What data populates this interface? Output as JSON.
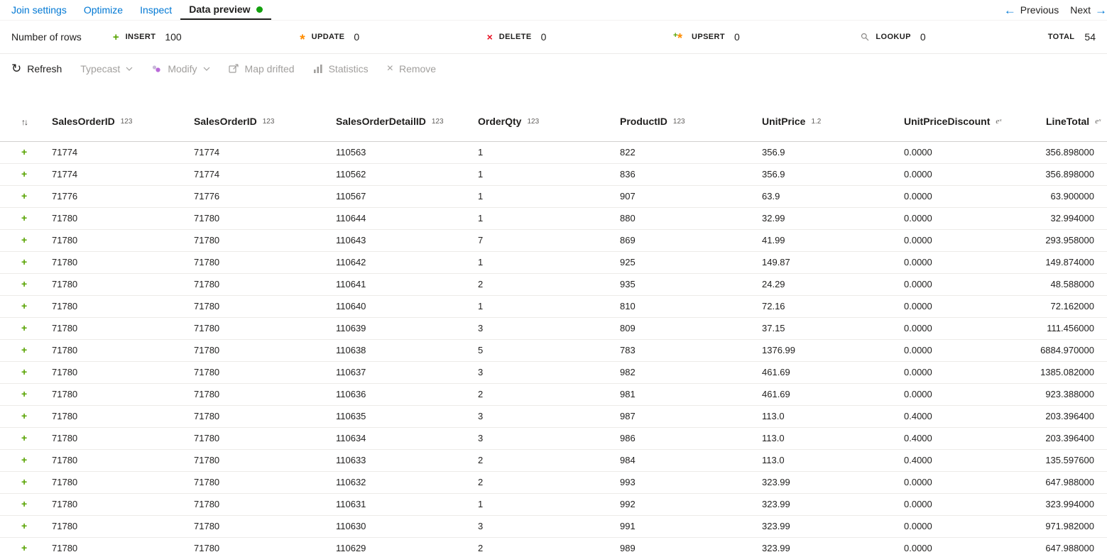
{
  "colors": {
    "accent": "#0078d4",
    "insert_green": "#57a300",
    "update_orange": "#ff8c00",
    "delete_red": "#e81123",
    "active_dot_green": "#13a10e"
  },
  "tabs": [
    {
      "label": "Join settings",
      "active": false
    },
    {
      "label": "Optimize",
      "active": false
    },
    {
      "label": "Inspect",
      "active": false
    },
    {
      "label": "Data preview",
      "active": true
    }
  ],
  "pager": {
    "previous_label": "Previous",
    "next_label": "Next",
    "prev_arrow": "←",
    "next_arrow": "→"
  },
  "stats": {
    "rows_label": "Number of rows",
    "insert": {
      "label": "INSERT",
      "value": "100"
    },
    "update": {
      "label": "UPDATE",
      "value": "0"
    },
    "delete": {
      "label": "DELETE",
      "value": "0"
    },
    "upsert": {
      "label": "UPSERT",
      "value": "0"
    },
    "lookup": {
      "label": "LOOKUP",
      "value": "0"
    },
    "total": {
      "label": "TOTAL",
      "value": "54"
    }
  },
  "toolbar": {
    "refresh_label": "Refresh",
    "typecast_label": "Typecast",
    "modify_label": "Modify",
    "map_drifted_label": "Map drifted",
    "statistics_label": "Statistics",
    "remove_label": "Remove"
  },
  "table": {
    "sort_icon": "↑↓",
    "columns": [
      {
        "name": "SalesOrderID",
        "type": "123"
      },
      {
        "name": "SalesOrderID",
        "type": "123"
      },
      {
        "name": "SalesOrderDetailID",
        "type": "123"
      },
      {
        "name": "OrderQty",
        "type": "123"
      },
      {
        "name": "ProductID",
        "type": "123"
      },
      {
        "name": "UnitPrice",
        "type": "1.2"
      },
      {
        "name": "UnitPriceDiscount",
        "type": "eˣ"
      },
      {
        "name": "LineTotal",
        "type": "eˣ"
      }
    ],
    "rows": [
      [
        "71774",
        "71774",
        "110563",
        "1",
        "822",
        "356.9",
        "0.0000",
        "356.898000"
      ],
      [
        "71774",
        "71774",
        "110562",
        "1",
        "836",
        "356.9",
        "0.0000",
        "356.898000"
      ],
      [
        "71776",
        "71776",
        "110567",
        "1",
        "907",
        "63.9",
        "0.0000",
        "63.900000"
      ],
      [
        "71780",
        "71780",
        "110644",
        "1",
        "880",
        "32.99",
        "0.0000",
        "32.994000"
      ],
      [
        "71780",
        "71780",
        "110643",
        "7",
        "869",
        "41.99",
        "0.0000",
        "293.958000"
      ],
      [
        "71780",
        "71780",
        "110642",
        "1",
        "925",
        "149.87",
        "0.0000",
        "149.874000"
      ],
      [
        "71780",
        "71780",
        "110641",
        "2",
        "935",
        "24.29",
        "0.0000",
        "48.588000"
      ],
      [
        "71780",
        "71780",
        "110640",
        "1",
        "810",
        "72.16",
        "0.0000",
        "72.162000"
      ],
      [
        "71780",
        "71780",
        "110639",
        "3",
        "809",
        "37.15",
        "0.0000",
        "111.456000"
      ],
      [
        "71780",
        "71780",
        "110638",
        "5",
        "783",
        "1376.99",
        "0.0000",
        "6884.970000"
      ],
      [
        "71780",
        "71780",
        "110637",
        "3",
        "982",
        "461.69",
        "0.0000",
        "1385.082000"
      ],
      [
        "71780",
        "71780",
        "110636",
        "2",
        "981",
        "461.69",
        "0.0000",
        "923.388000"
      ],
      [
        "71780",
        "71780",
        "110635",
        "3",
        "987",
        "113.0",
        "0.4000",
        "203.396400"
      ],
      [
        "71780",
        "71780",
        "110634",
        "3",
        "986",
        "113.0",
        "0.4000",
        "203.396400"
      ],
      [
        "71780",
        "71780",
        "110633",
        "2",
        "984",
        "113.0",
        "0.4000",
        "135.597600"
      ],
      [
        "71780",
        "71780",
        "110632",
        "2",
        "993",
        "323.99",
        "0.0000",
        "647.988000"
      ],
      [
        "71780",
        "71780",
        "110631",
        "1",
        "992",
        "323.99",
        "0.0000",
        "323.994000"
      ],
      [
        "71780",
        "71780",
        "110630",
        "3",
        "991",
        "323.99",
        "0.0000",
        "971.982000"
      ],
      [
        "71780",
        "71780",
        "110629",
        "2",
        "989",
        "323.99",
        "0.0000",
        "647.988000"
      ]
    ]
  }
}
